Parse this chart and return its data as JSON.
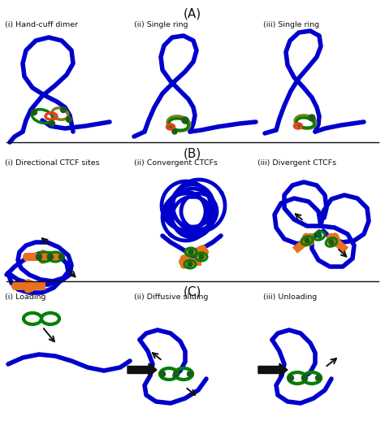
{
  "title_A": "(A)",
  "title_B": "(B)",
  "title_C": "(C)",
  "labels_A": [
    "(i) Hand-cuff dimer",
    "(ii) Single ring",
    "(iii) Single ring"
  ],
  "labels_B": [
    "(i) Directional CTCF sites",
    "(ii) Convergent CTCFs",
    "(iii) Divergent CTCFs"
  ],
  "labels_C": [
    "(i) Loading",
    "(ii) Diffusive sliding",
    "(iii) Unloading"
  ],
  "blue": "#0000CC",
  "green": "#008000",
  "dark_green": "#1a5c1a",
  "orange": "#E87020",
  "red_orange": "#E84020",
  "olive": "#808020",
  "black": "#111111",
  "white": "#FFFFFF",
  "lw_chrom": 4.0,
  "lw_ring": 2.2,
  "lw_ctcf": 7
}
